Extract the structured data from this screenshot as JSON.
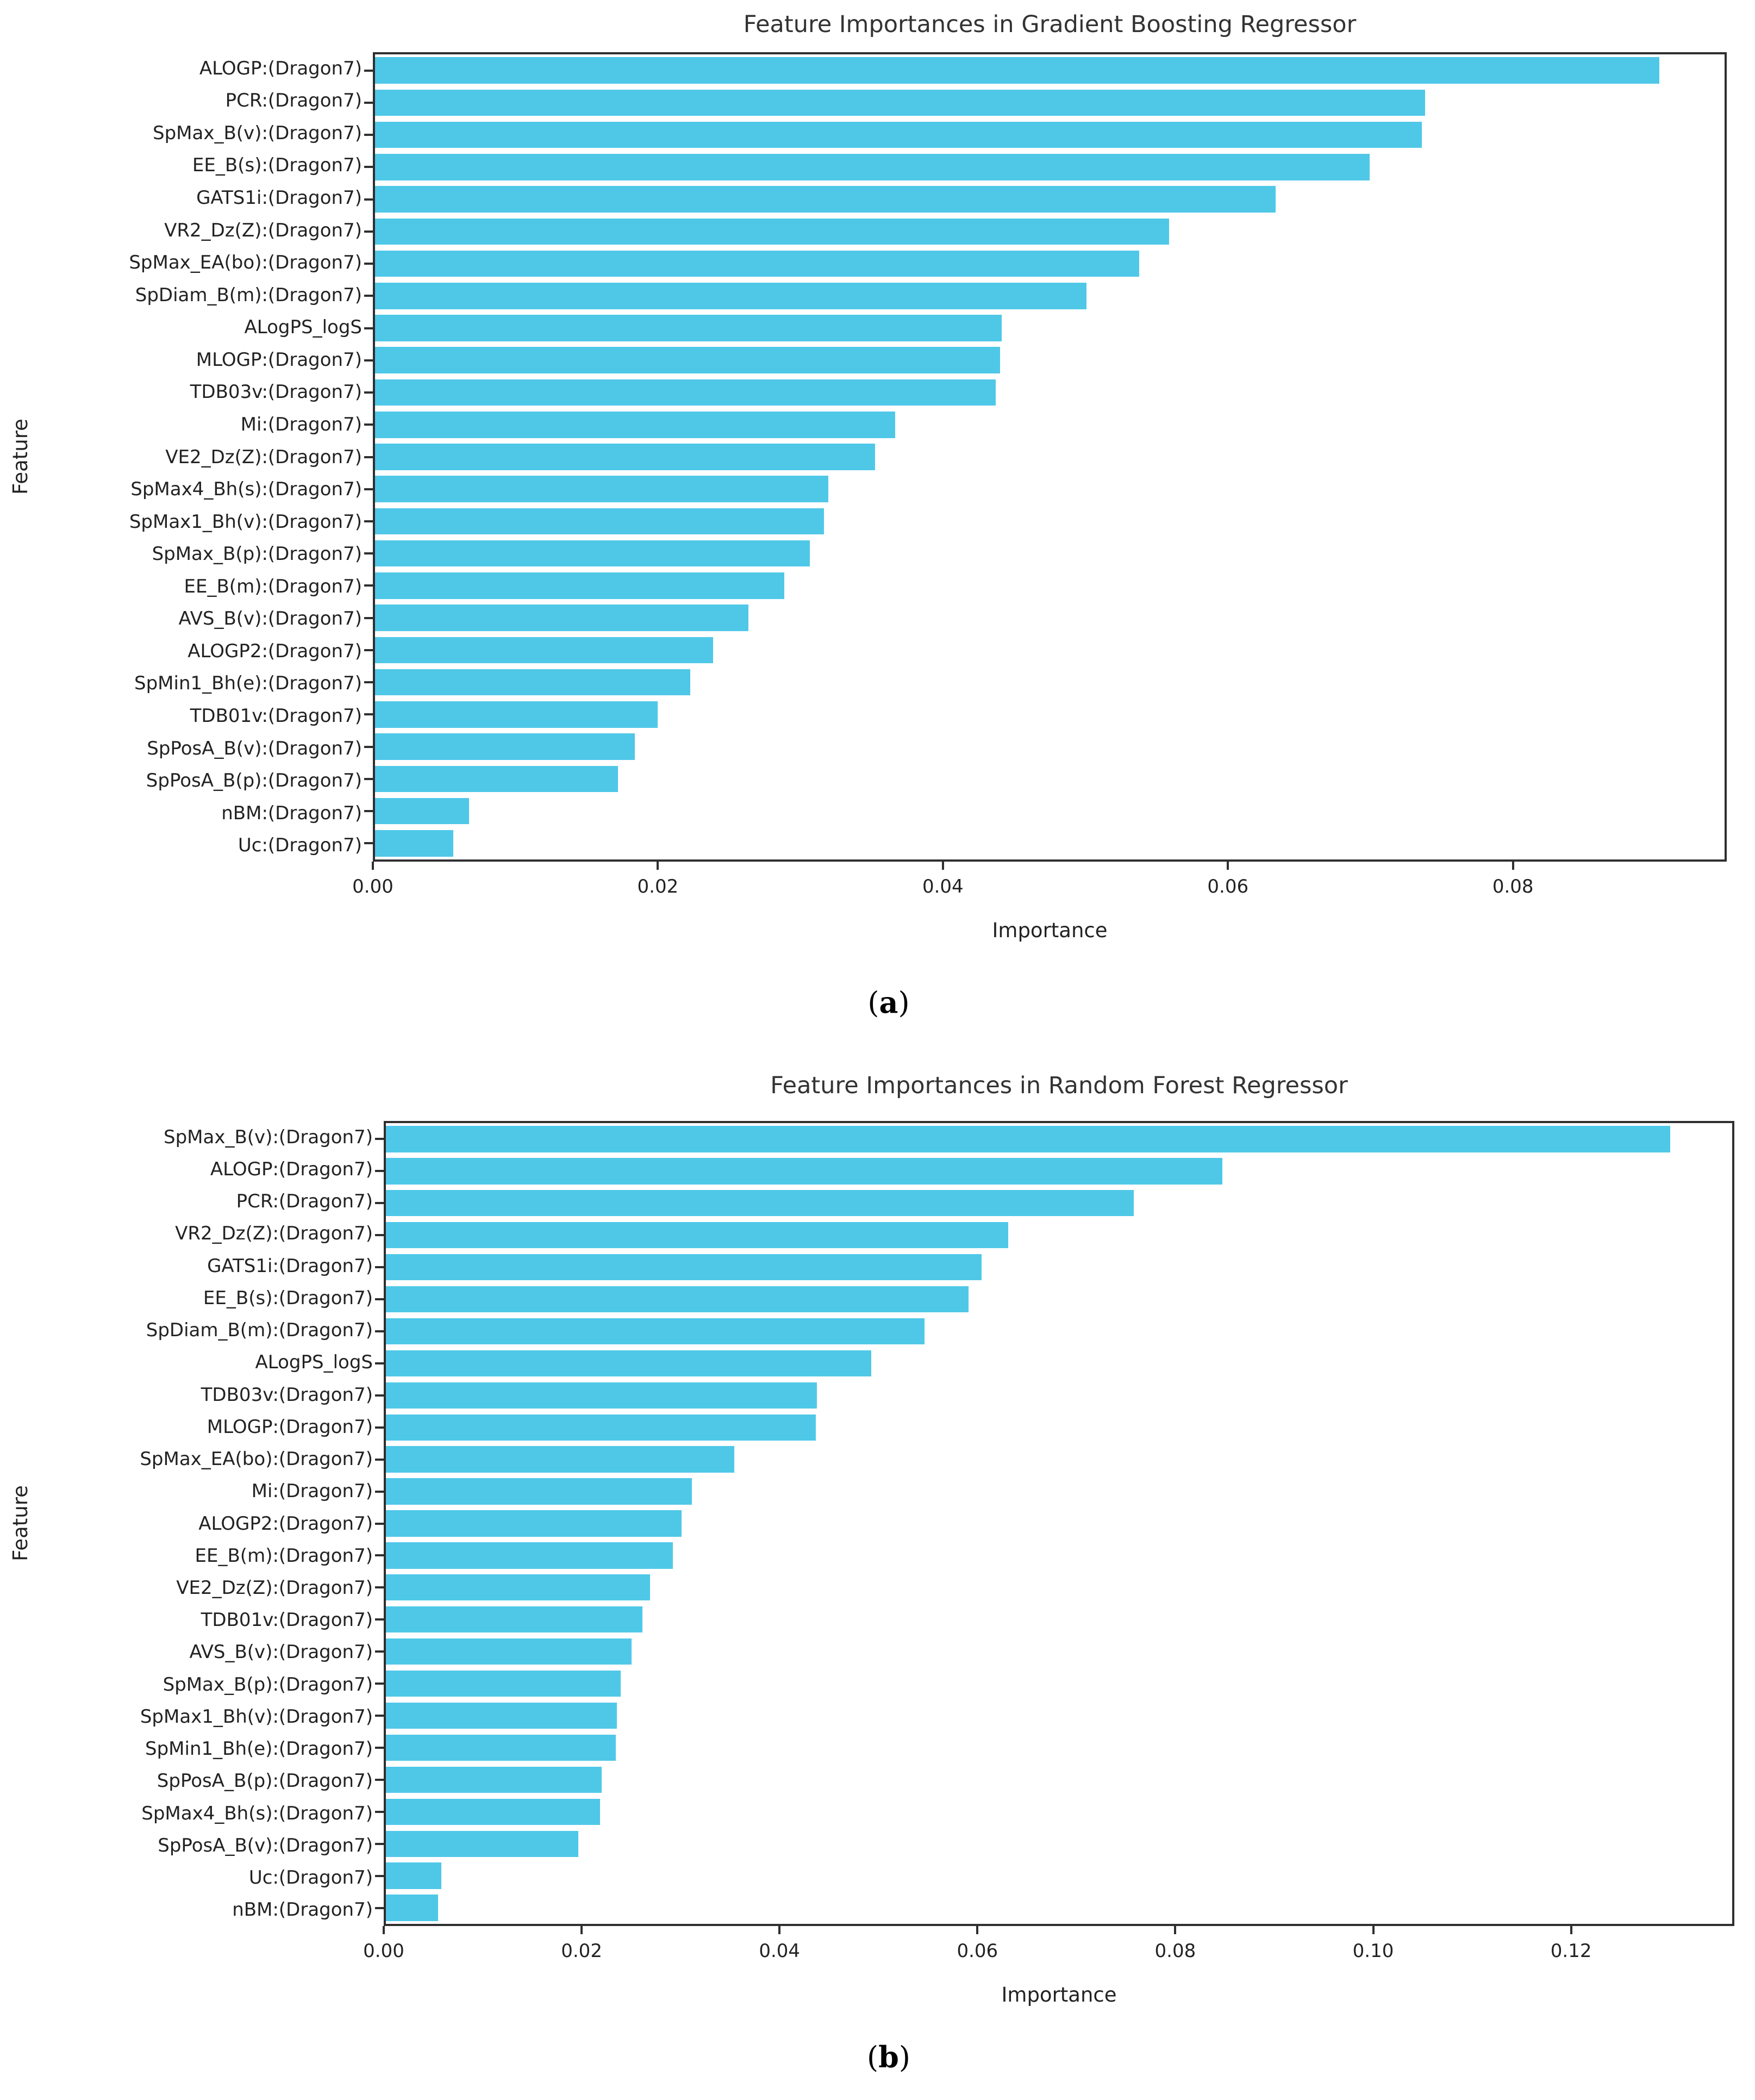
{
  "chart_data": [
    {
      "type": "bar",
      "orientation": "horizontal",
      "title": "Feature Importances in Gradient Boosting Regressor",
      "xlabel": "Importance",
      "ylabel": "Feature",
      "caption": {
        "open": "(",
        "letter": "a",
        "close": ")"
      },
      "bar_color": "#4fc8e8",
      "grid": false,
      "legend": null,
      "xlim": [
        0,
        0.095
      ],
      "xticks": [
        0,
        0.02,
        0.04,
        0.06,
        0.08
      ],
      "xtick_labels": [
        "0.00",
        "0.02",
        "0.04",
        "0.06",
        "0.08"
      ],
      "categories": [
        "ALOGP:(Dragon7)",
        "PCR:(Dragon7)",
        "SpMax_B(v):(Dragon7)",
        "EE_B(s):(Dragon7)",
        "GATS1i:(Dragon7)",
        "VR2_Dz(Z):(Dragon7)",
        "SpMax_EA(bo):(Dragon7)",
        "SpDiam_B(m):(Dragon7)",
        "ALogPS_logS",
        "MLOGP:(Dragon7)",
        "TDB03v:(Dragon7)",
        "Mi:(Dragon7)",
        "VE2_Dz(Z):(Dragon7)",
        "SpMax4_Bh(s):(Dragon7)",
        "SpMax1_Bh(v):(Dragon7)",
        "SpMax_B(p):(Dragon7)",
        "EE_B(m):(Dragon7)",
        "AVS_B(v):(Dragon7)",
        "ALOGP2:(Dragon7)",
        "SpMin1_Bh(e):(Dragon7)",
        "TDB01v:(Dragon7)",
        "SpPosA_B(v):(Dragon7)",
        "SpPosA_B(p):(Dragon7)",
        "nBM:(Dragon7)",
        "Uc:(Dragon7)"
      ],
      "values": [
        0.0904,
        0.0739,
        0.0737,
        0.07,
        0.0634,
        0.0559,
        0.0538,
        0.0501,
        0.0441,
        0.044,
        0.0437,
        0.0366,
        0.0352,
        0.0319,
        0.0316,
        0.0306,
        0.0288,
        0.0263,
        0.0238,
        0.0222,
        0.0199,
        0.0183,
        0.0171,
        0.0066,
        0.0055
      ]
    },
    {
      "type": "bar",
      "orientation": "horizontal",
      "title": "Feature Importances in Random Forest Regressor",
      "xlabel": "Importance",
      "ylabel": "Feature",
      "caption": {
        "open": "(",
        "letter": "b",
        "close": ")"
      },
      "bar_color": "#4fc8e8",
      "grid": false,
      "legend": null,
      "xlim": [
        0,
        0.1365
      ],
      "xticks": [
        0,
        0.02,
        0.04,
        0.06,
        0.08,
        0.1,
        0.12
      ],
      "xtick_labels": [
        "0.00",
        "0.02",
        "0.04",
        "0.06",
        "0.08",
        "0.10",
        "0.12"
      ],
      "categories": [
        "SpMax_B(v):(Dragon7)",
        "ALOGP:(Dragon7)",
        "PCR:(Dragon7)",
        "VR2_Dz(Z):(Dragon7)",
        "GATS1i:(Dragon7)",
        "EE_B(s):(Dragon7)",
        "SpDiam_B(m):(Dragon7)",
        "ALogPS_logS",
        "TDB03v:(Dragon7)",
        "MLOGP:(Dragon7)",
        "SpMax_EA(bo):(Dragon7)",
        "Mi:(Dragon7)",
        "ALOGP2:(Dragon7)",
        "EE_B(m):(Dragon7)",
        "VE2_Dz(Z):(Dragon7)",
        "TDB01v:(Dragon7)",
        "AVS_B(v):(Dragon7)",
        "SpMax_B(p):(Dragon7)",
        "SpMax1_Bh(v):(Dragon7)",
        "SpMin1_Bh(e):(Dragon7)",
        "SpPosA_B(p):(Dragon7)",
        "SpMax4_Bh(s):(Dragon7)",
        "SpPosA_B(v):(Dragon7)",
        "Uc:(Dragon7)",
        "nBM:(Dragon7)"
      ],
      "values": [
        0.1302,
        0.0848,
        0.0758,
        0.0631,
        0.0604,
        0.0591,
        0.0546,
        0.0492,
        0.0437,
        0.0436,
        0.0353,
        0.031,
        0.03,
        0.0291,
        0.0268,
        0.026,
        0.0249,
        0.0238,
        0.0234,
        0.0233,
        0.0219,
        0.0217,
        0.0195,
        0.0056,
        0.0053
      ]
    }
  ]
}
